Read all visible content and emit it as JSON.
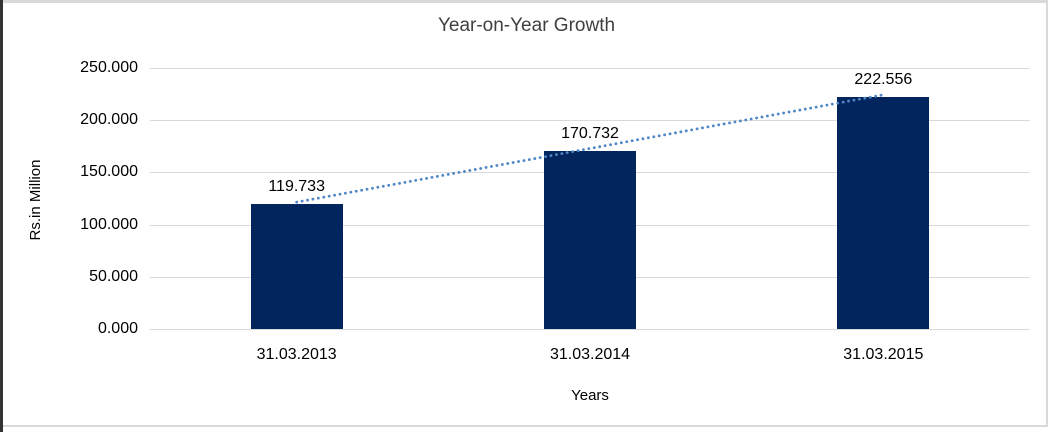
{
  "chart_data": {
    "type": "bar",
    "title": "Year-on-Year Growth",
    "xlabel": "Years",
    "ylabel": "Rs.in Million",
    "categories": [
      "31.03.2013",
      "31.03.2014",
      "31.03.2015"
    ],
    "values": [
      119.733,
      170.732,
      222.556
    ],
    "value_labels": [
      "119.733",
      "170.732",
      "222.556"
    ],
    "ylim": [
      0,
      250
    ],
    "ytick_step": 50,
    "ytick_labels": [
      "0.000",
      "50.000",
      "100.000",
      "150.000",
      "200.000",
      "250.000"
    ],
    "grid": true,
    "legend": "none",
    "trendline": {
      "type": "linear",
      "style": "dotted"
    },
    "colors": {
      "bar": "#02255E",
      "trendline": "#4E86C6",
      "gridline": "#D9D9D9",
      "label_text": "#000000",
      "title_text": "#404040",
      "frame_border": "#D9D9D9",
      "left_edge": "#333333",
      "background": "#FFFFFF"
    }
  }
}
